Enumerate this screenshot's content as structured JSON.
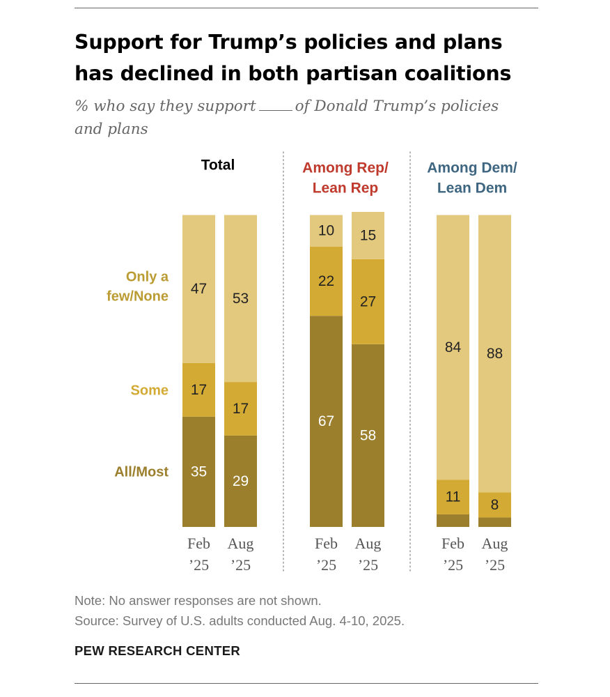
{
  "title_line1": "Support for Trump’s policies and plans",
  "title_line2": "has declined in both partisan coalitions",
  "subtitle_before": "% who say they support",
  "subtitle_after": "of Donald Trump’s policies",
  "subtitle_line2": "and plans",
  "note": "Note: No answer responses are not shown.",
  "source": "Source: Survey of U.S. adults conducted Aug. 4-10, 2025.",
  "brand": "PEW RESEARCH CENTER",
  "colors": {
    "all_most": "#9b7f2d",
    "some": "#d3aa34",
    "few_none": "#e3c97e",
    "total_header": "#000000",
    "rep_header": "#bf3a2c",
    "dem_header": "#3f6681",
    "category_label": "#bb9c33"
  },
  "chart_data": {
    "type": "bar",
    "stacked": true,
    "ylim": [
      0,
      100
    ],
    "category_labels": [
      "Only a few/None",
      "Some",
      "All/Most"
    ],
    "category_label_lines": [
      [
        "Only a",
        "few/None"
      ],
      [
        "Some"
      ],
      [
        "All/Most"
      ]
    ],
    "groups": [
      {
        "header": [
          "Total"
        ],
        "header_color": "#000000",
        "bars": [
          {
            "label": [
              "Feb",
              "’25"
            ],
            "all_most": 35,
            "some": 17,
            "few_none": 47
          },
          {
            "label": [
              "Aug",
              "’25"
            ],
            "all_most": 29,
            "some": 17,
            "few_none": 53
          }
        ]
      },
      {
        "header": [
          "Among Rep/",
          "Lean Rep"
        ],
        "header_color": "#bf3a2c",
        "bars": [
          {
            "label": [
              "Feb",
              "’25"
            ],
            "all_most": 67,
            "some": 22,
            "few_none": 10
          },
          {
            "label": [
              "Aug",
              "’25"
            ],
            "all_most": 58,
            "some": 27,
            "few_none": 15
          }
        ]
      },
      {
        "header": [
          "Among Dem/",
          "Lean Dem"
        ],
        "header_color": "#3f6681",
        "bars": [
          {
            "label": [
              "Feb",
              "’25"
            ],
            "all_most": 4,
            "some": 11,
            "few_none": 84,
            "hide_all_most_label": true
          },
          {
            "label": [
              "Aug",
              "’25"
            ],
            "all_most": 3,
            "some": 8,
            "few_none": 88,
            "hide_all_most_label": true
          }
        ]
      }
    ]
  }
}
